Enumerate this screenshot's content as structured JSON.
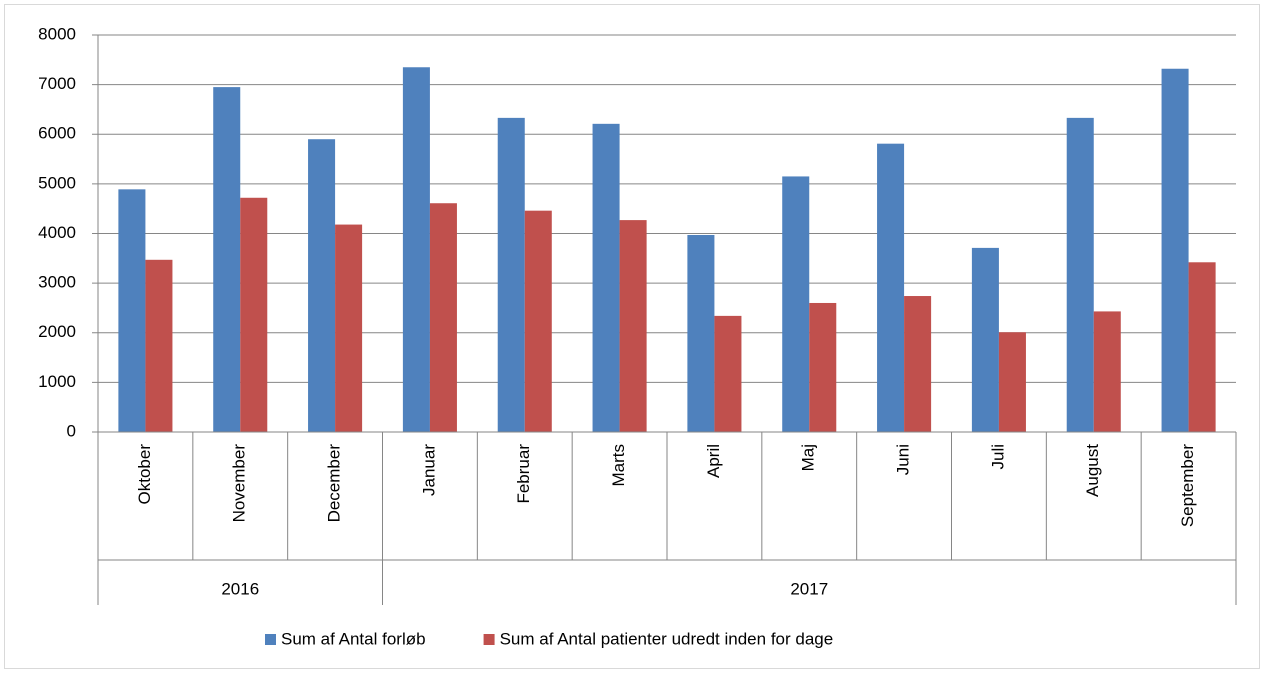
{
  "chart_data": {
    "type": "bar",
    "categories": [
      "Oktober",
      "November",
      "December",
      "Januar",
      "Februar",
      "Marts",
      "April",
      "Maj",
      "Juni",
      "Juli",
      "August",
      "September"
    ],
    "groups": [
      {
        "label": "2016",
        "count": 3
      },
      {
        "label": "2017",
        "count": 9
      }
    ],
    "series": [
      {
        "name": "Sum af Antal forløb",
        "color": "#4f81bd",
        "values": [
          4890,
          6950,
          5900,
          7350,
          6330,
          6210,
          3970,
          5150,
          5810,
          3710,
          6330,
          7320
        ]
      },
      {
        "name": "Sum af Antal patienter udredt inden for dage",
        "color": "#c0504d",
        "values": [
          3470,
          4720,
          4180,
          4610,
          4460,
          4270,
          2340,
          2600,
          2740,
          2010,
          2430,
          3420
        ]
      }
    ],
    "ylim": [
      0,
      8000
    ],
    "yticks": [
      0,
      1000,
      2000,
      3000,
      4000,
      5000,
      6000,
      7000,
      8000
    ],
    "grid": true,
    "legend": "bottom"
  }
}
